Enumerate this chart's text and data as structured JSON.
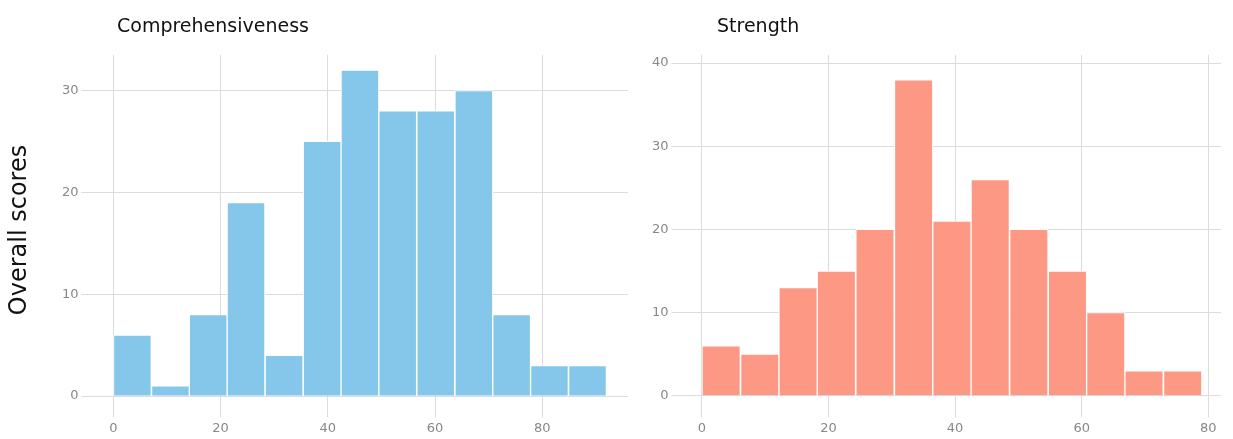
{
  "chart_data": [
    {
      "type": "histogram",
      "title": "Comprehensiveness",
      "ylabel": "Overall scores",
      "bins": [
        0,
        7.1,
        14.2,
        21.2,
        28.3,
        35.4,
        42.5,
        49.5,
        56.6,
        63.7,
        70.8,
        77.8,
        84.9,
        92
      ],
      "values": [
        6,
        1,
        8,
        19,
        4,
        25,
        32,
        28,
        28,
        30,
        8,
        3,
        3
      ],
      "color": "#85c7ea",
      "xlim": [
        -5,
        96
      ],
      "xticks": [
        0,
        20,
        40,
        60,
        80
      ],
      "ylim": [
        -1.6,
        33.5
      ],
      "yticks": [
        0,
        10,
        20,
        30
      ],
      "grid": true,
      "legend": false
    },
    {
      "type": "histogram",
      "title": "Strength",
      "bins": [
        0,
        6.1,
        12.2,
        18.2,
        24.3,
        30.4,
        36.5,
        42.5,
        48.6,
        54.7,
        60.8,
        66.8,
        72.9,
        79
      ],
      "values": [
        6,
        5,
        13,
        15,
        20,
        38,
        21,
        26,
        20,
        15,
        10,
        3,
        3
      ],
      "color": "#fd9884",
      "xlim": [
        -4,
        82
      ],
      "xticks": [
        0,
        20,
        40,
        60,
        80
      ],
      "ylim": [
        -2,
        41
      ],
      "yticks": [
        0,
        10,
        20,
        30,
        40
      ],
      "grid": true,
      "legend": false
    }
  ]
}
